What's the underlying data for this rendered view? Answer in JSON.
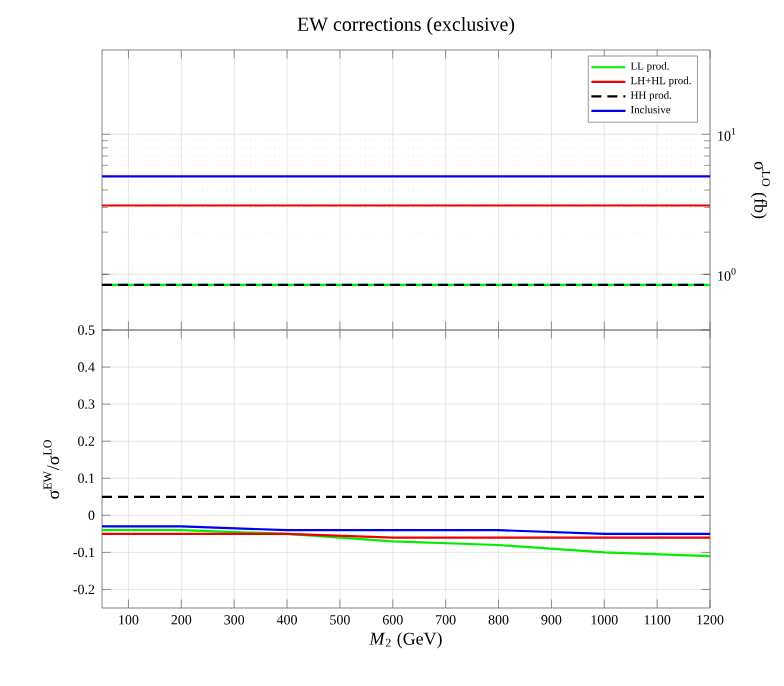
{
  "chart_data": [
    {
      "type": "line",
      "title": "EW corrections (exclusive)",
      "ylabel": "σ$^{LO}$ (fb)",
      "log": "y",
      "grid": true,
      "legend": "top right",
      "marker": "none",
      "tick_labels": "y",
      "x": [
        50,
        1200
      ],
      "xlim": [
        50,
        1200
      ],
      "xticks": [
        100,
        200,
        300,
        400,
        500,
        600,
        700,
        800,
        900,
        1000,
        1100,
        1200
      ],
      "ylim": [
        0.4,
        40
      ],
      "yticks": [
        {
          "value": 1,
          "label": "10$^{0}$"
        },
        {
          "value": 10,
          "label": "10$^{1}$"
        }
      ],
      "series": [
        {
          "name": "LL prod.",
          "color": "#00ee00",
          "values": [
            0.84,
            0.84
          ]
        },
        {
          "name": "LH+HL prod.",
          "color": "#ee0000",
          "values": [
            3.1,
            3.1
          ]
        },
        {
          "name": "HH prod.",
          "color": "#000000",
          "line_style": "dashed",
          "values": [
            0.84,
            0.84
          ]
        },
        {
          "name": "Inclusive",
          "color": "#0000ee",
          "values": [
            5,
            5
          ]
        }
      ]
    },
    {
      "type": "line",
      "xlabel": "*M*$_{2}$ (GeV)",
      "ylabel": "σ$^{EW}$/σ$^{LO}$",
      "grid": true,
      "marker": "none",
      "x": [
        50,
        200,
        400,
        600,
        800,
        1000,
        1200
      ],
      "xlim": [
        50,
        1200
      ],
      "xticks": [
        100,
        200,
        300,
        400,
        500,
        600,
        700,
        800,
        900,
        1000,
        1100,
        1200
      ],
      "ylim": [
        -0.25,
        0.5
      ],
      "yticks": [
        -0.2,
        -0.1,
        0,
        0.1,
        0.2,
        0.3,
        0.4,
        0.5
      ],
      "series": [
        {
          "color": "#00ee00",
          "values": [
            -0.04,
            -0.04,
            -0.05,
            -0.07,
            -0.08,
            -0.1,
            -0.11
          ]
        },
        {
          "color": "#ee0000",
          "values": [
            -0.05,
            -0.05,
            -0.05,
            -0.06,
            -0.06,
            -0.06,
            -0.06
          ]
        },
        {
          "color": "#000000",
          "line_style": "dashed",
          "values": [
            0.05,
            0.05,
            0.05,
            0.05,
            0.05,
            0.05,
            0.05
          ]
        },
        {
          "color": "#0000ee",
          "values": [
            -0.03,
            -0.03,
            -0.04,
            -0.04,
            -0.04,
            -0.05,
            -0.05
          ]
        }
      ]
    }
  ]
}
